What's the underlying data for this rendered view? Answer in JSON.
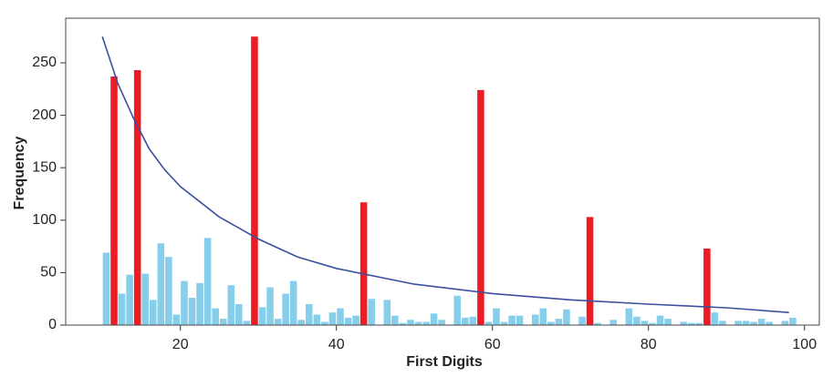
{
  "chart_data": {
    "type": "histogram",
    "x_label": "First Digits",
    "y_label": "Frequency",
    "bins": [
      10,
      11,
      12,
      13,
      14,
      15,
      16,
      17,
      18,
      19,
      20,
      21,
      22,
      23,
      24,
      25,
      26,
      27,
      28,
      29,
      30,
      31,
      32,
      33,
      34,
      35,
      36,
      37,
      38,
      39,
      40,
      41,
      42,
      43,
      44,
      45,
      46,
      47,
      48,
      49,
      50,
      51,
      52,
      53,
      54,
      55,
      56,
      57,
      58,
      59,
      60,
      61,
      62,
      63,
      64,
      65,
      66,
      67,
      68,
      69,
      70,
      71,
      72,
      73,
      74,
      75,
      76,
      77,
      78,
      79,
      80,
      81,
      82,
      83,
      84,
      85,
      86,
      87,
      88,
      89,
      90,
      91,
      92,
      93,
      94,
      95,
      96,
      97,
      98,
      99,
      100
    ],
    "values": [
      69,
      237,
      30,
      48,
      243,
      49,
      24,
      78,
      65,
      10,
      42,
      26,
      40,
      83,
      16,
      6,
      38,
      20,
      4,
      275,
      17,
      36,
      6,
      30,
      42,
      5,
      20,
      10,
      3,
      12,
      16,
      7,
      9,
      117,
      25,
      0,
      24,
      9,
      2,
      5,
      3,
      3,
      11,
      5,
      0,
      28,
      7,
      8,
      224,
      3,
      16,
      3,
      9,
      9,
      0,
      10,
      16,
      3,
      6,
      15,
      0,
      8,
      103,
      2,
      0,
      5,
      0,
      16,
      8,
      4,
      2,
      9,
      6,
      0,
      3,
      2,
      2,
      73,
      12,
      4,
      0,
      4,
      4,
      3,
      6,
      3,
      0,
      4,
      7,
      0
    ],
    "color": "#87ceeb",
    "highlight_color": "#ed1c24",
    "highlighted": [
      11,
      14,
      29,
      43,
      58,
      72,
      87
    ],
    "line": {
      "type": "line",
      "color": "#3a4f9e",
      "x": [
        10,
        12,
        14,
        16,
        18,
        20,
        25,
        30,
        35,
        40,
        50,
        60,
        70,
        80,
        90,
        98
      ],
      "values": [
        275,
        230,
        197,
        168,
        148,
        132,
        103,
        82,
        65,
        54,
        39,
        30,
        24,
        20,
        16.5,
        12
      ]
    },
    "xlim": [
      5.3,
      101.9
    ],
    "ylim": [
      0,
      292.5
    ],
    "xticks": [
      20,
      40,
      60,
      80,
      100
    ],
    "yticks": [
      0,
      50,
      100,
      150,
      200,
      250
    ]
  }
}
